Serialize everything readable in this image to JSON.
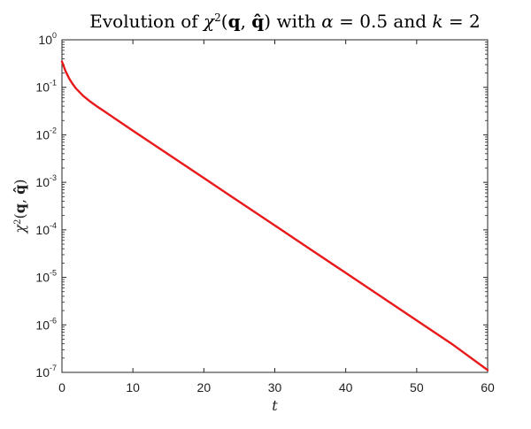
{
  "chart_data": {
    "type": "line",
    "title": {
      "prefix": "Evolution of ",
      "chi": "χ",
      "sq": "2",
      "lp": "(",
      "q": "q",
      "comma": ", ",
      "qhat": "q̂",
      "rp": ")",
      "mid": " with ",
      "alpha": "α",
      "eq1": " = 0.5 and ",
      "k": "k",
      "eq2": " = 2"
    },
    "xlabel": "t",
    "ylabel": {
      "chi": "χ",
      "sq": "2",
      "lp": "(",
      "q": "q",
      "comma": ", ",
      "qhat": "q̂",
      "rp": ")"
    },
    "x_scale": "linear",
    "y_scale": "log",
    "xlim": [
      0,
      60
    ],
    "ylim": [
      1e-07,
      1
    ],
    "x_ticks": [
      0,
      10,
      20,
      30,
      40,
      50,
      60
    ],
    "y_ticks": [
      {
        "value": 1,
        "base": "10",
        "exp": "0"
      },
      {
        "value": 0.1,
        "base": "10",
        "exp": "-1"
      },
      {
        "value": 0.01,
        "base": "10",
        "exp": "-2"
      },
      {
        "value": 0.001,
        "base": "10",
        "exp": "-3"
      },
      {
        "value": 0.0001,
        "base": "10",
        "exp": "-4"
      },
      {
        "value": 1e-05,
        "base": "10",
        "exp": "-5"
      },
      {
        "value": 1e-06,
        "base": "10",
        "exp": "-6"
      },
      {
        "value": 1e-07,
        "base": "10",
        "exp": "-7"
      }
    ],
    "grid": false,
    "series": [
      {
        "color": "#e8191a",
        "x": [
          0,
          0.5,
          1,
          1.5,
          2,
          3,
          4,
          5,
          6,
          8,
          10,
          15,
          20,
          25,
          30,
          35,
          40,
          45,
          50,
          55,
          60
        ],
        "y": [
          0.35,
          0.22,
          0.155,
          0.118,
          0.094,
          0.066,
          0.05,
          0.039,
          0.031,
          0.0195,
          0.0122,
          0.00388,
          0.00123,
          0.00039,
          0.000124,
          3.92e-05,
          1.24e-05,
          3.93e-06,
          1.24e-06,
          3.93e-07,
          1.12e-07
        ]
      }
    ]
  }
}
